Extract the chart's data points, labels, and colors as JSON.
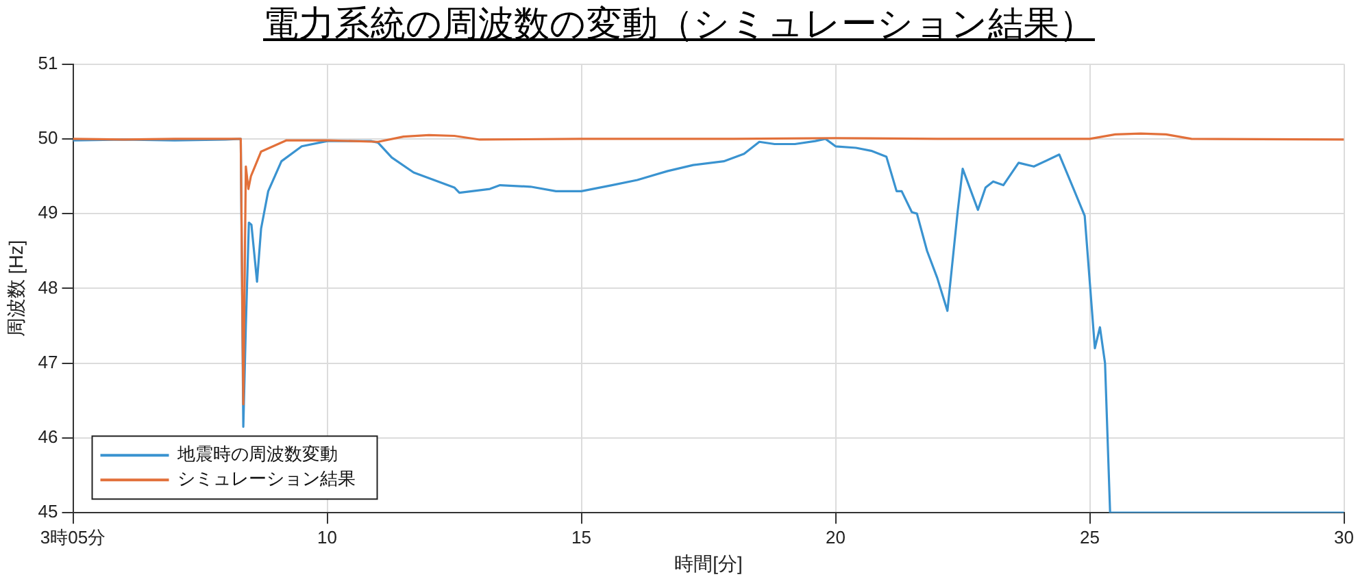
{
  "chart_data": {
    "type": "line",
    "title": "電力系統の周波数の変動（シミュレーション結果）",
    "xlabel": "時間[分]",
    "ylabel": "周波数 [Hz]",
    "xlim": [
      5,
      30
    ],
    "xticks": [
      {
        "value": 5,
        "label": "3時05分"
      },
      10,
      15,
      20,
      25,
      30
    ],
    "ylim": [
      45,
      51
    ],
    "yticks": [
      45,
      46,
      47,
      48,
      49,
      50,
      51
    ],
    "grid": true,
    "legend": "bottom left",
    "marker": "none",
    "line_style": "solid",
    "series": [
      {
        "name": "地震時の周波数変動",
        "color": "#3a93d0",
        "x": [
          5,
          6,
          7,
          8,
          8.3,
          8.35,
          8.4,
          8.46,
          8.51,
          8.62,
          8.7,
          8.84,
          9.1,
          9.5,
          10,
          10.86,
          11,
          11.27,
          11.7,
          12.1,
          12.5,
          12.6,
          13.2,
          13.4,
          14,
          14.5,
          15,
          15.6,
          16.1,
          16.7,
          17.2,
          17.8,
          18.2,
          18.5,
          18.8,
          19.2,
          19.6,
          19.8,
          20,
          20.4,
          20.7,
          21,
          21.2,
          21.3,
          21.5,
          21.6,
          21.8,
          22,
          22.2,
          22.4,
          22.5,
          22.8,
          22.95,
          23.1,
          23.3,
          23.6,
          23.9,
          24.4,
          24.7,
          24.9,
          25.1,
          25.2,
          25.3,
          25.4,
          25.45,
          25.54,
          30
        ],
        "values": [
          49.98,
          49.99,
          49.98,
          49.99,
          50,
          46.15,
          47.5,
          48.88,
          48.85,
          48.09,
          48.8,
          49.3,
          49.7,
          49.9,
          49.97,
          49.97,
          49.95,
          49.75,
          49.55,
          49.45,
          49.35,
          49.28,
          49.33,
          49.38,
          49.36,
          49.3,
          49.3,
          49.38,
          49.45,
          49.57,
          49.65,
          49.7,
          49.8,
          49.96,
          49.93,
          49.93,
          49.97,
          50,
          49.9,
          49.88,
          49.84,
          49.76,
          49.3,
          49.3,
          49.02,
          49,
          48.5,
          48.14,
          47.7,
          49.02,
          49.6,
          49.05,
          49.35,
          49.43,
          49.38,
          49.68,
          49.63,
          49.79,
          49.3,
          48.97,
          47.2,
          47.48,
          47,
          45,
          45,
          45,
          45
        ]
      },
      {
        "name": "シミュレーション結果",
        "color": "#e2703a",
        "x": [
          5,
          6,
          7,
          8,
          8.3,
          8.35,
          8.4,
          8.45,
          8.5,
          8.7,
          9.2,
          10,
          11,
          11.5,
          12,
          12.5,
          13,
          15,
          18,
          20,
          22,
          24,
          25,
          25.5,
          26,
          26.5,
          27,
          30
        ],
        "values": [
          50,
          49.99,
          50,
          50,
          50,
          46.45,
          49.63,
          49.33,
          49.5,
          49.83,
          49.98,
          49.98,
          49.96,
          50.03,
          50.05,
          50.04,
          49.99,
          50,
          50,
          50.01,
          50,
          50,
          50,
          50.06,
          50.07,
          50.06,
          50,
          49.99
        ]
      }
    ]
  }
}
